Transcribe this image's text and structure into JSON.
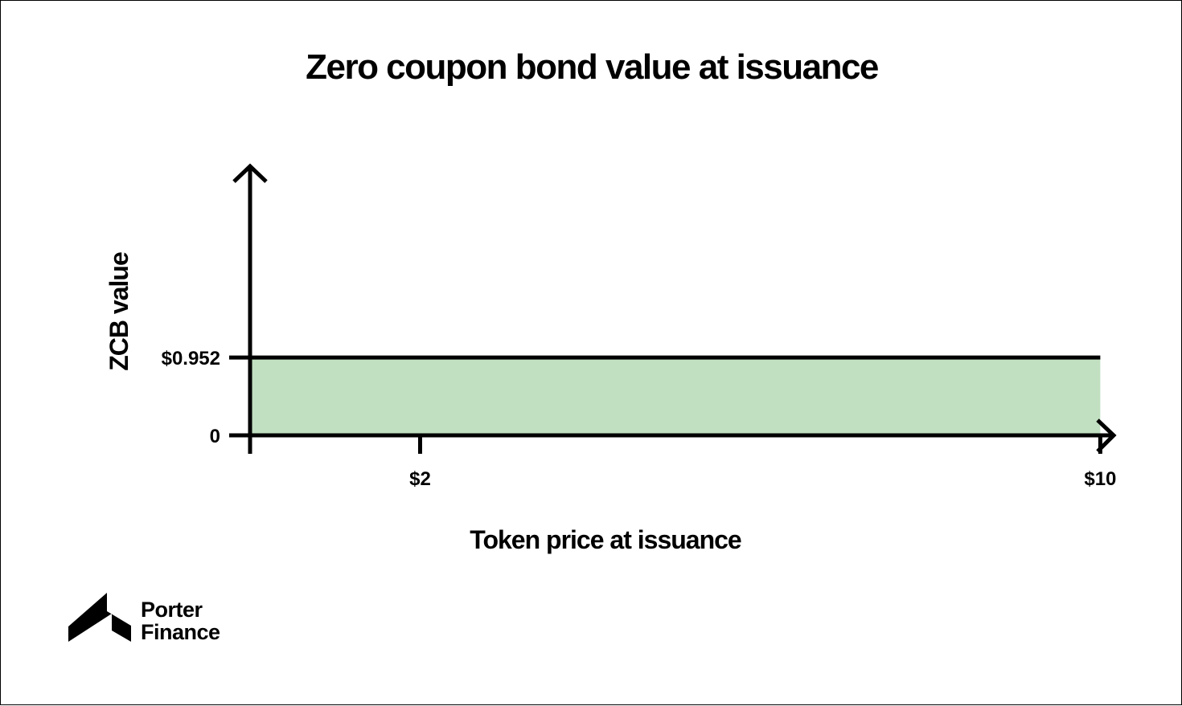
{
  "chart_data": {
    "type": "area",
    "title": "Zero coupon bond value at issuance",
    "xlabel": "Token price at issuance",
    "ylabel": "ZCB value",
    "x": [
      0,
      10
    ],
    "values": [
      0.952,
      0.952
    ],
    "xticks": [
      {
        "value": 2,
        "label": "$2"
      },
      {
        "value": 10,
        "label": "$10"
      }
    ],
    "yticks": [
      {
        "value": 0,
        "label": "0"
      },
      {
        "value": 0.952,
        "label": "$0.952"
      }
    ],
    "xlim": [
      0,
      12.2
    ],
    "ylim": [
      0,
      3.3
    ],
    "fill_color": "#c1e0c1",
    "line_color": "#000000",
    "grid": false
  },
  "brand": {
    "line1": "Porter",
    "line2": "Finance"
  }
}
